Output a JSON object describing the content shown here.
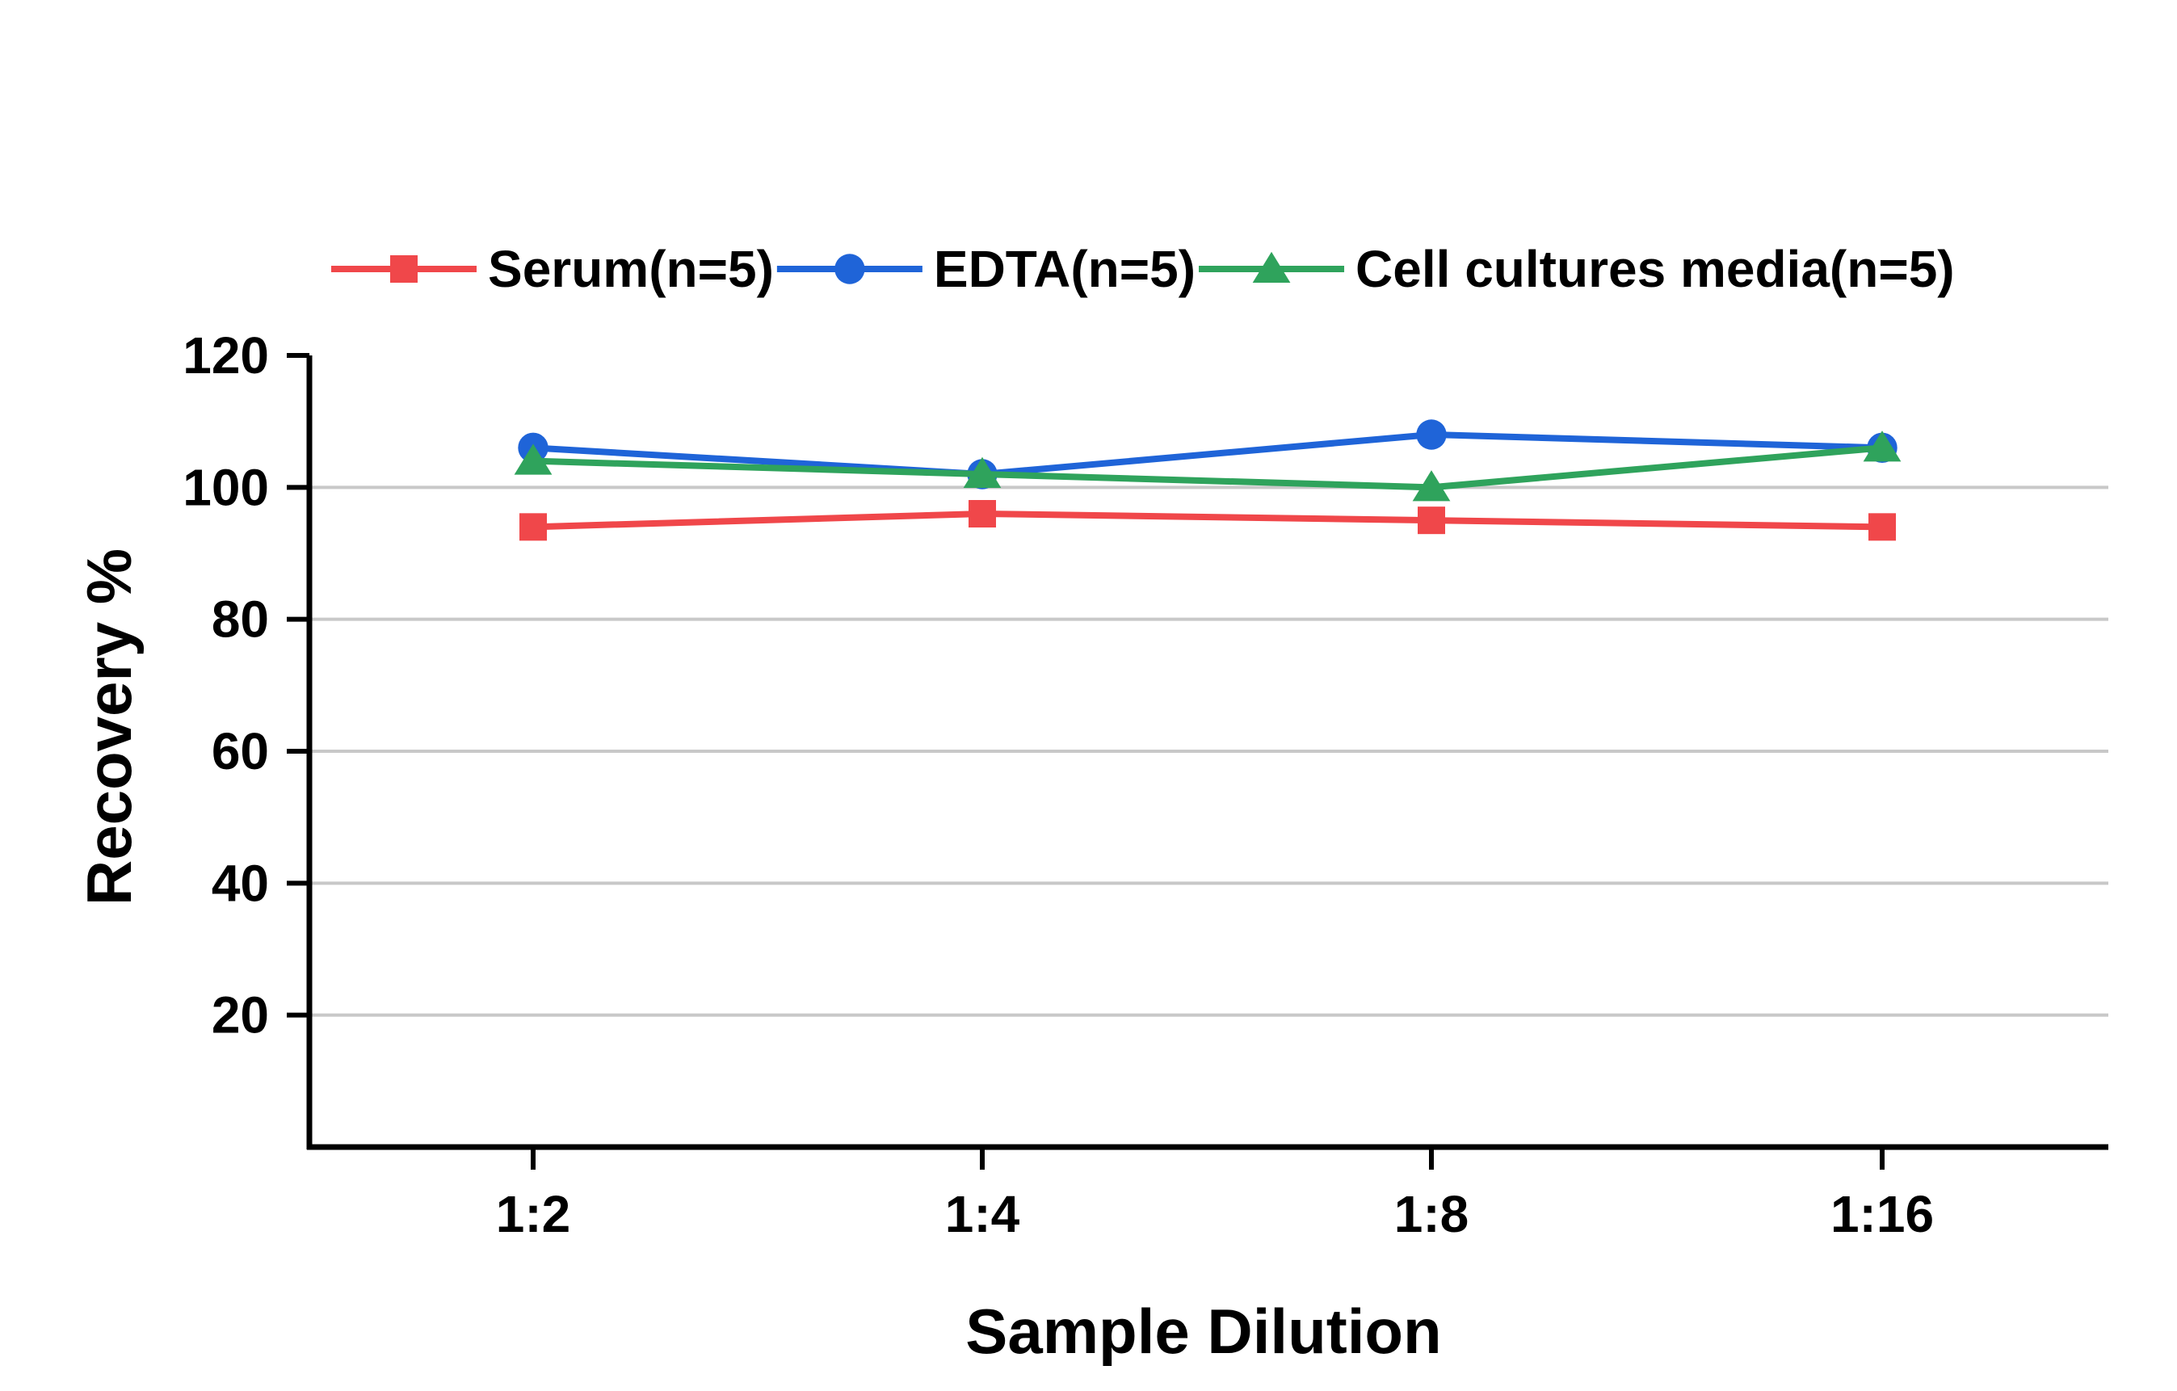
{
  "chart_data": {
    "type": "line",
    "title": "",
    "xlabel": "Sample Dilution",
    "ylabel": "Recovery %",
    "categories": [
      "1:2",
      "1:4",
      "1:8",
      "1:16"
    ],
    "ylim": [
      0,
      120
    ],
    "yticks": [
      20,
      40,
      60,
      80,
      100,
      120
    ],
    "grid": "horizontal",
    "legend_position": "top",
    "series": [
      {
        "name": "Serum(n=5)",
        "values": [
          94,
          96,
          95,
          94
        ],
        "color": "#f0474a",
        "marker": "square"
      },
      {
        "name": "EDTA(n=5)",
        "values": [
          106,
          102,
          108,
          106
        ],
        "color": "#1f64d8",
        "marker": "circle"
      },
      {
        "name": "Cell cultures media(n=5)",
        "values": [
          104,
          102,
          100,
          106
        ],
        "color": "#2fa35c",
        "marker": "triangle"
      }
    ]
  }
}
